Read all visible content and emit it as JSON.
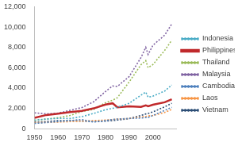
{
  "chart_data": {
    "type": "line",
    "x": [
      1950,
      1955,
      1960,
      1965,
      1970,
      1975,
      1980,
      1983,
      1985,
      1990,
      1995,
      1997,
      1998,
      2000,
      2005,
      2008
    ],
    "series": [
      {
        "name": "Indonesia",
        "color": "#4bacc6",
        "line_style": "dotted",
        "values": [
          840,
          950,
          1020,
          1000,
          1190,
          1500,
          1870,
          2000,
          2100,
          2500,
          3300,
          3600,
          3100,
          3200,
          3700,
          4300
        ]
      },
      {
        "name": "Philippines",
        "color": "#c0292b",
        "line_style": "solid",
        "values": [
          1070,
          1350,
          1475,
          1633,
          1760,
          2000,
          2370,
          2500,
          2100,
          2200,
          2150,
          2300,
          2200,
          2350,
          2600,
          2900
        ]
      },
      {
        "name": "Thailand",
        "color": "#9bbb59",
        "line_style": "dotted",
        "values": [
          817,
          950,
          1078,
          1300,
          1694,
          1900,
          2554,
          2800,
          3050,
          4600,
          6300,
          6700,
          6000,
          6300,
          7700,
          8700
        ]
      },
      {
        "name": "Malaysia",
        "color": "#8064a2",
        "line_style": "dotted",
        "values": [
          1559,
          1460,
          1530,
          1804,
          2079,
          2648,
          3657,
          4200,
          4157,
          5131,
          7000,
          8000,
          7300,
          8200,
          9200,
          10300
        ]
      },
      {
        "name": "Cambodia",
        "color": "#4f81bd",
        "line_style": "dotted",
        "values": [
          520,
          600,
          700,
          800,
          900,
          650,
          800,
          900,
          950,
          1000,
          1050,
          1100,
          1100,
          1300,
          1800,
          2100
        ]
      },
      {
        "name": "Laos",
        "color": "#f79646",
        "line_style": "dotted",
        "values": [
          600,
          620,
          650,
          700,
          750,
          800,
          850,
          900,
          950,
          1000,
          1150,
          1200,
          1250,
          1300,
          1600,
          1900
        ]
      },
      {
        "name": "Vietnam",
        "color": "#2c4d75",
        "line_style": "dotted",
        "values": [
          650,
          700,
          800,
          800,
          750,
          700,
          750,
          800,
          850,
          1000,
          1300,
          1450,
          1500,
          1650,
          2150,
          2500
        ]
      }
    ],
    "xlim": [
      1950,
      2010
    ],
    "xticks": [
      1950,
      1960,
      1970,
      1980,
      1990,
      2000
    ],
    "ylim": [
      0,
      12000
    ],
    "yticks": [
      0,
      {
        "value": 2000,
        "label": "2,000"
      },
      {
        "value": 4000,
        "label": "4,000"
      },
      {
        "value": 6000,
        "label": "6,000"
      },
      {
        "value": 8000,
        "label": "8,000"
      },
      {
        "value": 10000,
        "label": "10,000"
      },
      {
        "value": 12000,
        "label": "12,000"
      }
    ],
    "grid": false,
    "legend": "right"
  }
}
